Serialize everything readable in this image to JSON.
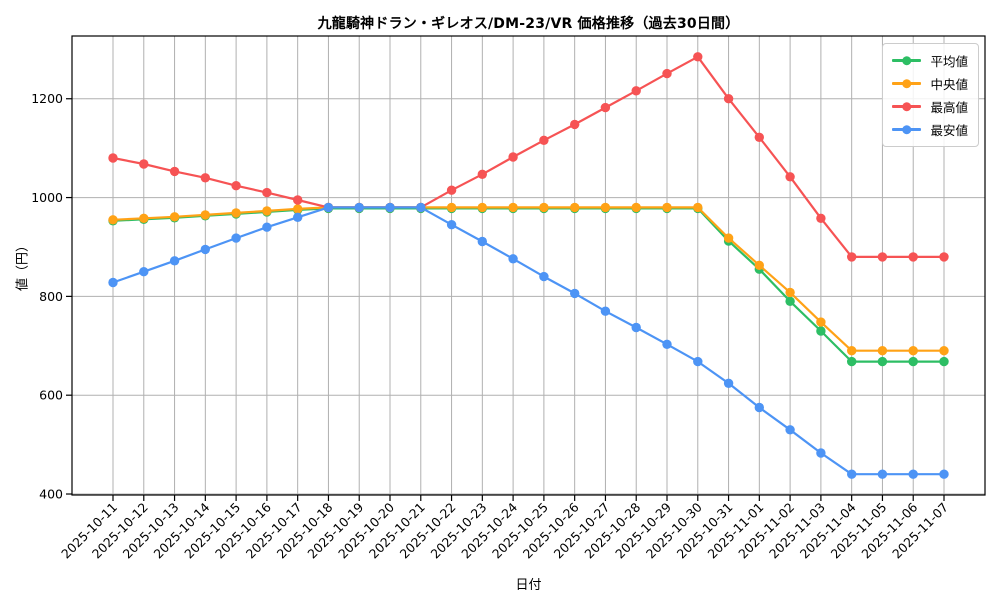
{
  "chart_data": {
    "type": "line",
    "title": "九龍騎神ドラン・ギレオス/DM-23/VR 価格推移（過去30日間）",
    "xlabel": "日付",
    "ylabel": "値（円）",
    "grid": true,
    "legend_position": "upper right",
    "ylim": [
      398,
      1327
    ],
    "yticks": [
      400,
      600,
      800,
      1000,
      1200
    ],
    "grid_color": "#b0b0b0",
    "axis_color": "#000000",
    "x": [
      "2025-10-11",
      "2025-10-12",
      "2025-10-13",
      "2025-10-14",
      "2025-10-15",
      "2025-10-16",
      "2025-10-17",
      "2025-10-18",
      "2025-10-19",
      "2025-10-20",
      "2025-10-21",
      "2025-10-22",
      "2025-10-23",
      "2025-10-24",
      "2025-10-25",
      "2025-10-26",
      "2025-10-27",
      "2025-10-28",
      "2025-10-29",
      "2025-10-30",
      "2025-10-31",
      "2025-11-01",
      "2025-11-02",
      "2025-11-03",
      "2025-11-04",
      "2025-11-05",
      "2025-11-06",
      "2025-11-07"
    ],
    "series": [
      {
        "name": "平均値",
        "key": "average",
        "color": "#2dbe64",
        "values": [
          953,
          956,
          959,
          963,
          967,
          971,
          975,
          978,
          978,
          978,
          978,
          978,
          978,
          978,
          978,
          978,
          978,
          978,
          978,
          978,
          912,
          855,
          790,
          730,
          668,
          668,
          668,
          668
        ]
      },
      {
        "name": "中央値",
        "key": "median",
        "color": "#ffa216",
        "values": [
          955,
          958,
          961,
          965,
          969,
          973,
          977,
          980,
          980,
          980,
          980,
          980,
          980,
          980,
          980,
          980,
          980,
          980,
          980,
          980,
          918,
          863,
          808,
          748,
          690,
          690,
          690,
          690
        ]
      },
      {
        "name": "最高値",
        "key": "max",
        "color": "#f65354",
        "values": [
          1080,
          1068,
          1053,
          1040,
          1024,
          1010,
          995,
          980,
          980,
          980,
          980,
          1015,
          1047,
          1082,
          1116,
          1148,
          1182,
          1216,
          1251,
          1285,
          1200,
          1122,
          1042,
          958,
          880,
          880,
          880,
          880
        ]
      },
      {
        "name": "最安値",
        "key": "min",
        "color": "#4d94f5",
        "values": [
          828,
          850,
          872,
          895,
          918,
          940,
          960,
          980,
          980,
          980,
          980,
          945,
          911,
          876,
          840,
          806,
          770,
          737,
          703,
          668,
          624,
          575,
          530,
          483,
          440,
          440,
          440,
          440
        ]
      }
    ]
  }
}
